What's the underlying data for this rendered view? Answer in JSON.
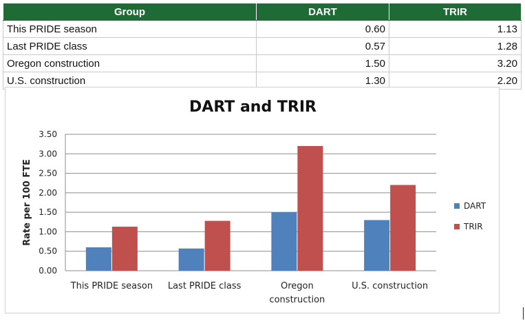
{
  "table": {
    "headers": [
      "Group",
      "DART",
      "TRIR"
    ],
    "rows": [
      [
        "This PRIDE season",
        "0.60",
        "1.13"
      ],
      [
        "Last PRIDE class",
        "0.57",
        "1.28"
      ],
      [
        "Oregon construction",
        "1.50",
        "3.20"
      ],
      [
        "U.S. construction",
        "1.30",
        "2.20"
      ]
    ]
  },
  "chart_data": {
    "type": "bar",
    "title": "DART and TRIR",
    "xlabel": "",
    "ylabel": "Rate per 100 FTE",
    "categories": [
      [
        "This PRIDE season"
      ],
      [
        "Last PRIDE class"
      ],
      [
        "Oregon",
        "construction"
      ],
      [
        "U.S. construction"
      ]
    ],
    "series": [
      {
        "name": "DART",
        "color": "#4f81bd",
        "values": [
          0.6,
          0.57,
          1.5,
          1.3
        ]
      },
      {
        "name": "TRIR",
        "color": "#c0504d",
        "values": [
          1.13,
          1.28,
          3.2,
          2.2
        ]
      }
    ],
    "ylim": [
      0,
      3.5
    ],
    "yticks": [
      "0.00",
      "0.50",
      "1.00",
      "1.50",
      "2.00",
      "2.50",
      "3.00",
      "3.50"
    ],
    "grid": true,
    "legend_position": "right"
  }
}
